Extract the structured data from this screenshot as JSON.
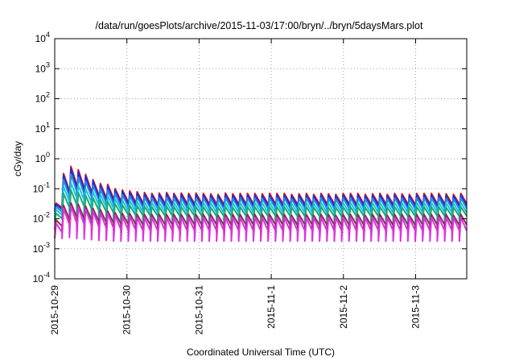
{
  "chart_data": {
    "type": "line",
    "title": "/data/run/goesPlots/archive/2015-11-03/17:00/bryn/../bryn/5daysMars.plot",
    "xlabel": "Coordinated Universal Time (UTC)",
    "ylabel": "cGy/day",
    "yscale": "log",
    "ylim": [
      0.0001,
      10000
    ],
    "xlim": [
      "2015-10-29 00:00",
      "2015-11-03 17:00"
    ],
    "grid": true,
    "legend": "none",
    "x_ticks": [
      "2015-10-29",
      "2015-10-30",
      "2015-10-31",
      "2015-11-1",
      "2015-11-2",
      "2015-11-3"
    ],
    "y_ticks": [
      {
        "base": "10",
        "exp": "4"
      },
      {
        "base": "10",
        "exp": "3"
      },
      {
        "base": "10",
        "exp": "2"
      },
      {
        "base": "10",
        "exp": "1"
      },
      {
        "base": "10",
        "exp": "0"
      },
      {
        "base": "10",
        "exp": "-1"
      },
      {
        "base": "10",
        "exp": "-2"
      },
      {
        "base": "10",
        "exp": "-3"
      },
      {
        "base": "10",
        "exp": "-4"
      }
    ],
    "series": [
      {
        "color": "#d81818",
        "peaks": [
          0.033,
          0.32,
          0.56,
          0.43,
          0.3,
          0.2,
          0.15,
          0.14,
          0.1,
          0.09,
          0.085,
          0.08,
          0.075,
          0.07,
          0.072,
          0.075,
          0.07,
          0.072,
          0.07,
          0.072,
          0.07,
          0.068,
          0.065,
          0.072,
          0.068,
          0.07,
          0.07,
          0.07,
          0.068,
          0.07,
          0.07,
          0.07,
          0.065,
          0.068,
          0.07,
          0.065,
          0.07,
          0.068,
          0.065,
          0.07,
          0.07,
          0.07,
          0.065,
          0.068,
          0.07,
          0.065,
          0.07,
          0.068,
          0.065,
          0.07,
          0.07,
          0.07,
          0.07,
          0.068,
          0.065,
          0.07
        ],
        "troughs": [
          0.02,
          0.028,
          0.04,
          0.035,
          0.028,
          0.024,
          0.022,
          0.02,
          0.02,
          0.018,
          0.018,
          0.018,
          0.018,
          0.018,
          0.018,
          0.018,
          0.018,
          0.018,
          0.018,
          0.018,
          0.018,
          0.018,
          0.018,
          0.018,
          0.018,
          0.018,
          0.018,
          0.018,
          0.018,
          0.018,
          0.018,
          0.018,
          0.018,
          0.018,
          0.018,
          0.018,
          0.018,
          0.018,
          0.018,
          0.018,
          0.018,
          0.018,
          0.018,
          0.018,
          0.018,
          0.018,
          0.018,
          0.018,
          0.018,
          0.018,
          0.018,
          0.018,
          0.018,
          0.018,
          0.018,
          0.018
        ]
      },
      {
        "color": "#2828d8",
        "peaks": [
          0.03,
          0.28,
          0.46,
          0.36,
          0.26,
          0.18,
          0.13,
          0.12,
          0.09,
          0.08,
          0.075,
          0.07,
          0.066,
          0.062,
          0.064,
          0.066,
          0.062,
          0.064,
          0.062,
          0.064,
          0.062,
          0.06,
          0.058,
          0.064,
          0.06,
          0.062,
          0.062,
          0.062,
          0.06,
          0.062,
          0.062,
          0.062,
          0.058,
          0.06,
          0.062,
          0.058,
          0.062,
          0.06,
          0.058,
          0.062,
          0.062,
          0.062,
          0.058,
          0.06,
          0.062,
          0.058,
          0.062,
          0.06,
          0.058,
          0.062,
          0.062,
          0.062,
          0.062,
          0.06,
          0.058,
          0.062
        ],
        "troughs": [
          0.017,
          0.024,
          0.034,
          0.03,
          0.024,
          0.02,
          0.018,
          0.017,
          0.016,
          0.015,
          0.015,
          0.015,
          0.015,
          0.015,
          0.015,
          0.015,
          0.015,
          0.015,
          0.015,
          0.015,
          0.015,
          0.015,
          0.015,
          0.015,
          0.015,
          0.015,
          0.015,
          0.015,
          0.015,
          0.015,
          0.015,
          0.015,
          0.015,
          0.015,
          0.015,
          0.015,
          0.015,
          0.015,
          0.015,
          0.015,
          0.015,
          0.015,
          0.015,
          0.015,
          0.015,
          0.015,
          0.015,
          0.015,
          0.015,
          0.015,
          0.015,
          0.015,
          0.015,
          0.015,
          0.015,
          0.015
        ]
      },
      {
        "color": "#1e90e0",
        "peaks": [
          0.025,
          0.2,
          0.3,
          0.24,
          0.18,
          0.13,
          0.1,
          0.09,
          0.07,
          0.062,
          0.058,
          0.055,
          0.052,
          0.05,
          0.05,
          0.052,
          0.05,
          0.05,
          0.05,
          0.05,
          0.05,
          0.048,
          0.046,
          0.05,
          0.048,
          0.05,
          0.05,
          0.05,
          0.048,
          0.05,
          0.05,
          0.05,
          0.046,
          0.048,
          0.05,
          0.046,
          0.05,
          0.048,
          0.046,
          0.05,
          0.05,
          0.05,
          0.046,
          0.048,
          0.05,
          0.046,
          0.05,
          0.048,
          0.046,
          0.05,
          0.05,
          0.05,
          0.05,
          0.048,
          0.046,
          0.05
        ],
        "troughs": [
          0.014,
          0.019,
          0.026,
          0.023,
          0.019,
          0.016,
          0.014,
          0.013,
          0.012,
          0.012,
          0.012,
          0.012,
          0.012,
          0.012,
          0.012,
          0.012,
          0.012,
          0.012,
          0.012,
          0.012,
          0.012,
          0.012,
          0.012,
          0.012,
          0.012,
          0.012,
          0.012,
          0.012,
          0.012,
          0.012,
          0.012,
          0.012,
          0.012,
          0.012,
          0.012,
          0.012,
          0.012,
          0.012,
          0.012,
          0.012,
          0.012,
          0.012,
          0.012,
          0.012,
          0.012,
          0.012,
          0.012,
          0.012,
          0.012,
          0.012,
          0.012,
          0.012,
          0.012,
          0.012,
          0.012,
          0.012
        ]
      },
      {
        "color": "#18c8d8",
        "peaks": [
          0.02,
          0.12,
          0.16,
          0.13,
          0.1,
          0.08,
          0.065,
          0.058,
          0.048,
          0.042,
          0.04,
          0.038,
          0.036,
          0.035,
          0.035,
          0.036,
          0.035,
          0.035,
          0.035,
          0.035,
          0.035,
          0.034,
          0.033,
          0.035,
          0.034,
          0.035,
          0.035,
          0.035,
          0.034,
          0.035,
          0.035,
          0.035,
          0.033,
          0.034,
          0.035,
          0.033,
          0.035,
          0.034,
          0.033,
          0.035,
          0.035,
          0.035,
          0.033,
          0.034,
          0.035,
          0.033,
          0.035,
          0.034,
          0.033,
          0.035,
          0.035,
          0.035,
          0.035,
          0.034,
          0.033,
          0.035
        ],
        "troughs": [
          0.011,
          0.014,
          0.018,
          0.016,
          0.014,
          0.012,
          0.011,
          0.01,
          0.0095,
          0.009,
          0.009,
          0.009,
          0.009,
          0.009,
          0.009,
          0.009,
          0.009,
          0.009,
          0.009,
          0.009,
          0.009,
          0.009,
          0.009,
          0.009,
          0.009,
          0.009,
          0.009,
          0.009,
          0.009,
          0.009,
          0.009,
          0.009,
          0.009,
          0.009,
          0.009,
          0.009,
          0.009,
          0.009,
          0.009,
          0.009,
          0.009,
          0.009,
          0.009,
          0.009,
          0.009,
          0.009,
          0.009,
          0.009,
          0.009,
          0.009,
          0.009,
          0.009,
          0.009,
          0.009,
          0.009,
          0.009
        ]
      },
      {
        "color": "#20a878",
        "peaks": [
          0.015,
          0.07,
          0.09,
          0.075,
          0.06,
          0.05,
          0.043,
          0.038,
          0.032,
          0.029,
          0.028,
          0.027,
          0.026,
          0.025,
          0.025,
          0.026,
          0.025,
          0.025,
          0.025,
          0.025,
          0.025,
          0.024,
          0.024,
          0.025,
          0.024,
          0.025,
          0.025,
          0.025,
          0.024,
          0.025,
          0.025,
          0.025,
          0.024,
          0.024,
          0.025,
          0.024,
          0.025,
          0.024,
          0.024,
          0.025,
          0.025,
          0.025,
          0.024,
          0.024,
          0.025,
          0.024,
          0.025,
          0.024,
          0.024,
          0.025,
          0.025,
          0.025,
          0.025,
          0.024,
          0.024,
          0.025
        ],
        "troughs": [
          0.0085,
          0.01,
          0.012,
          0.011,
          0.0095,
          0.009,
          0.0085,
          0.008,
          0.0078,
          0.0075,
          0.0075,
          0.0075,
          0.0075,
          0.0075,
          0.0075,
          0.0075,
          0.0075,
          0.0075,
          0.0075,
          0.0075,
          0.0075,
          0.0075,
          0.0075,
          0.0075,
          0.0075,
          0.0075,
          0.0075,
          0.0075,
          0.0075,
          0.0075,
          0.0075,
          0.0075,
          0.0075,
          0.0075,
          0.0075,
          0.0075,
          0.0075,
          0.0075,
          0.0075,
          0.0075,
          0.0075,
          0.0075,
          0.0075,
          0.0075,
          0.0075,
          0.0075,
          0.0075,
          0.0075,
          0.0075,
          0.0075,
          0.0075,
          0.0075,
          0.0075,
          0.0075,
          0.0075,
          0.0075
        ]
      },
      {
        "color": "#8a2a5a",
        "peaks": [
          0.009,
          0.028,
          0.034,
          0.03,
          0.026,
          0.022,
          0.02,
          0.018,
          0.016,
          0.015,
          0.015,
          0.014,
          0.014,
          0.014,
          0.014,
          0.014,
          0.014,
          0.014,
          0.014,
          0.014,
          0.014,
          0.014,
          0.013,
          0.014,
          0.014,
          0.014,
          0.014,
          0.014,
          0.014,
          0.014,
          0.014,
          0.014,
          0.013,
          0.014,
          0.014,
          0.013,
          0.014,
          0.014,
          0.013,
          0.014,
          0.014,
          0.014,
          0.013,
          0.014,
          0.014,
          0.013,
          0.014,
          0.014,
          0.013,
          0.014,
          0.014,
          0.014,
          0.014,
          0.014,
          0.013,
          0.014
        ],
        "troughs": [
          0.0045,
          0.004,
          0.0045,
          0.0042,
          0.004,
          0.0038,
          0.0037,
          0.0036,
          0.0035,
          0.0035,
          0.0035,
          0.0035,
          0.0035,
          0.0035,
          0.0035,
          0.0035,
          0.0035,
          0.0035,
          0.0035,
          0.0035,
          0.0035,
          0.0035,
          0.0035,
          0.0035,
          0.0035,
          0.0035,
          0.0035,
          0.0035,
          0.0035,
          0.0035,
          0.0035,
          0.0035,
          0.0035,
          0.0035,
          0.0035,
          0.0035,
          0.0035,
          0.0035,
          0.0035,
          0.0035,
          0.0035,
          0.0035,
          0.0035,
          0.0035,
          0.0035,
          0.0035,
          0.0035,
          0.0035,
          0.0035,
          0.0035,
          0.0035,
          0.0035,
          0.0035,
          0.0035,
          0.0035,
          0.0035
        ]
      },
      {
        "color": "#e030e0",
        "peaks": [
          0.007,
          0.022,
          0.026,
          0.024,
          0.021,
          0.018,
          0.016,
          0.015,
          0.013,
          0.012,
          0.012,
          0.011,
          0.011,
          0.011,
          0.011,
          0.011,
          0.011,
          0.011,
          0.011,
          0.011,
          0.011,
          0.011,
          0.011,
          0.011,
          0.011,
          0.011,
          0.011,
          0.011,
          0.011,
          0.011,
          0.011,
          0.011,
          0.011,
          0.011,
          0.011,
          0.011,
          0.011,
          0.011,
          0.011,
          0.011,
          0.011,
          0.011,
          0.011,
          0.011,
          0.011,
          0.011,
          0.011,
          0.011,
          0.011,
          0.011,
          0.011,
          0.011,
          0.011,
          0.011,
          0.011,
          0.011
        ],
        "troughs": [
          0.0022,
          0.0022,
          0.0024,
          0.0022,
          0.0021,
          0.002,
          0.0019,
          0.0019,
          0.0018,
          0.0018,
          0.0018,
          0.0018,
          0.0018,
          0.0018,
          0.0018,
          0.0018,
          0.0018,
          0.0018,
          0.0018,
          0.0018,
          0.0018,
          0.0018,
          0.0018,
          0.0018,
          0.0018,
          0.0018,
          0.0018,
          0.0018,
          0.0018,
          0.0018,
          0.0018,
          0.0018,
          0.0018,
          0.0018,
          0.0018,
          0.0018,
          0.0018,
          0.0018,
          0.0018,
          0.0018,
          0.0018,
          0.0018,
          0.0018,
          0.0018,
          0.0018,
          0.0018,
          0.0018,
          0.0018,
          0.0018,
          0.0018,
          0.0018,
          0.0018,
          0.0018,
          0.0018,
          0.0018,
          0.0018
        ]
      }
    ]
  }
}
